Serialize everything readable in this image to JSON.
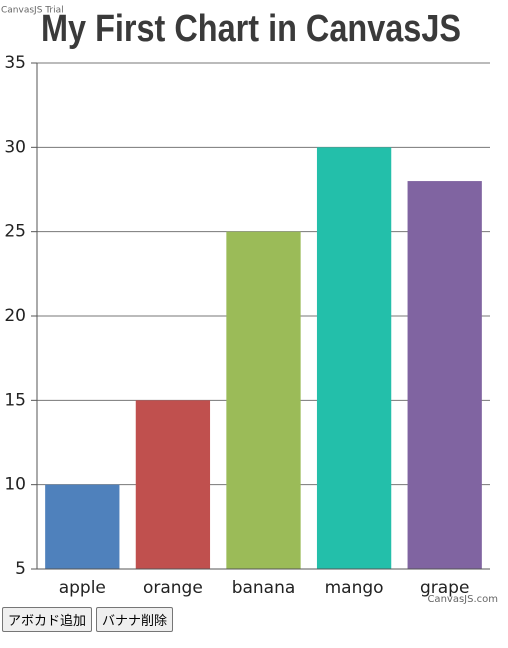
{
  "trial_label": "CanvasJS Trial",
  "credit": "CanvasJS.com",
  "buttons": [
    "アボカド追加",
    "バナナ削除"
  ],
  "chart_data": {
    "type": "bar",
    "title": "My First Chart in CanvasJS",
    "categories": [
      "apple",
      "orange",
      "banana",
      "mango",
      "grape"
    ],
    "values": [
      10,
      15,
      25,
      30,
      28
    ],
    "colors": [
      "#4f81bc",
      "#c0504e",
      "#9bbb58",
      "#23bfaa",
      "#8064a1"
    ],
    "ylim": [
      5,
      35
    ],
    "yticks": [
      5,
      10,
      15,
      20,
      25,
      30,
      35
    ],
    "grid": true
  }
}
